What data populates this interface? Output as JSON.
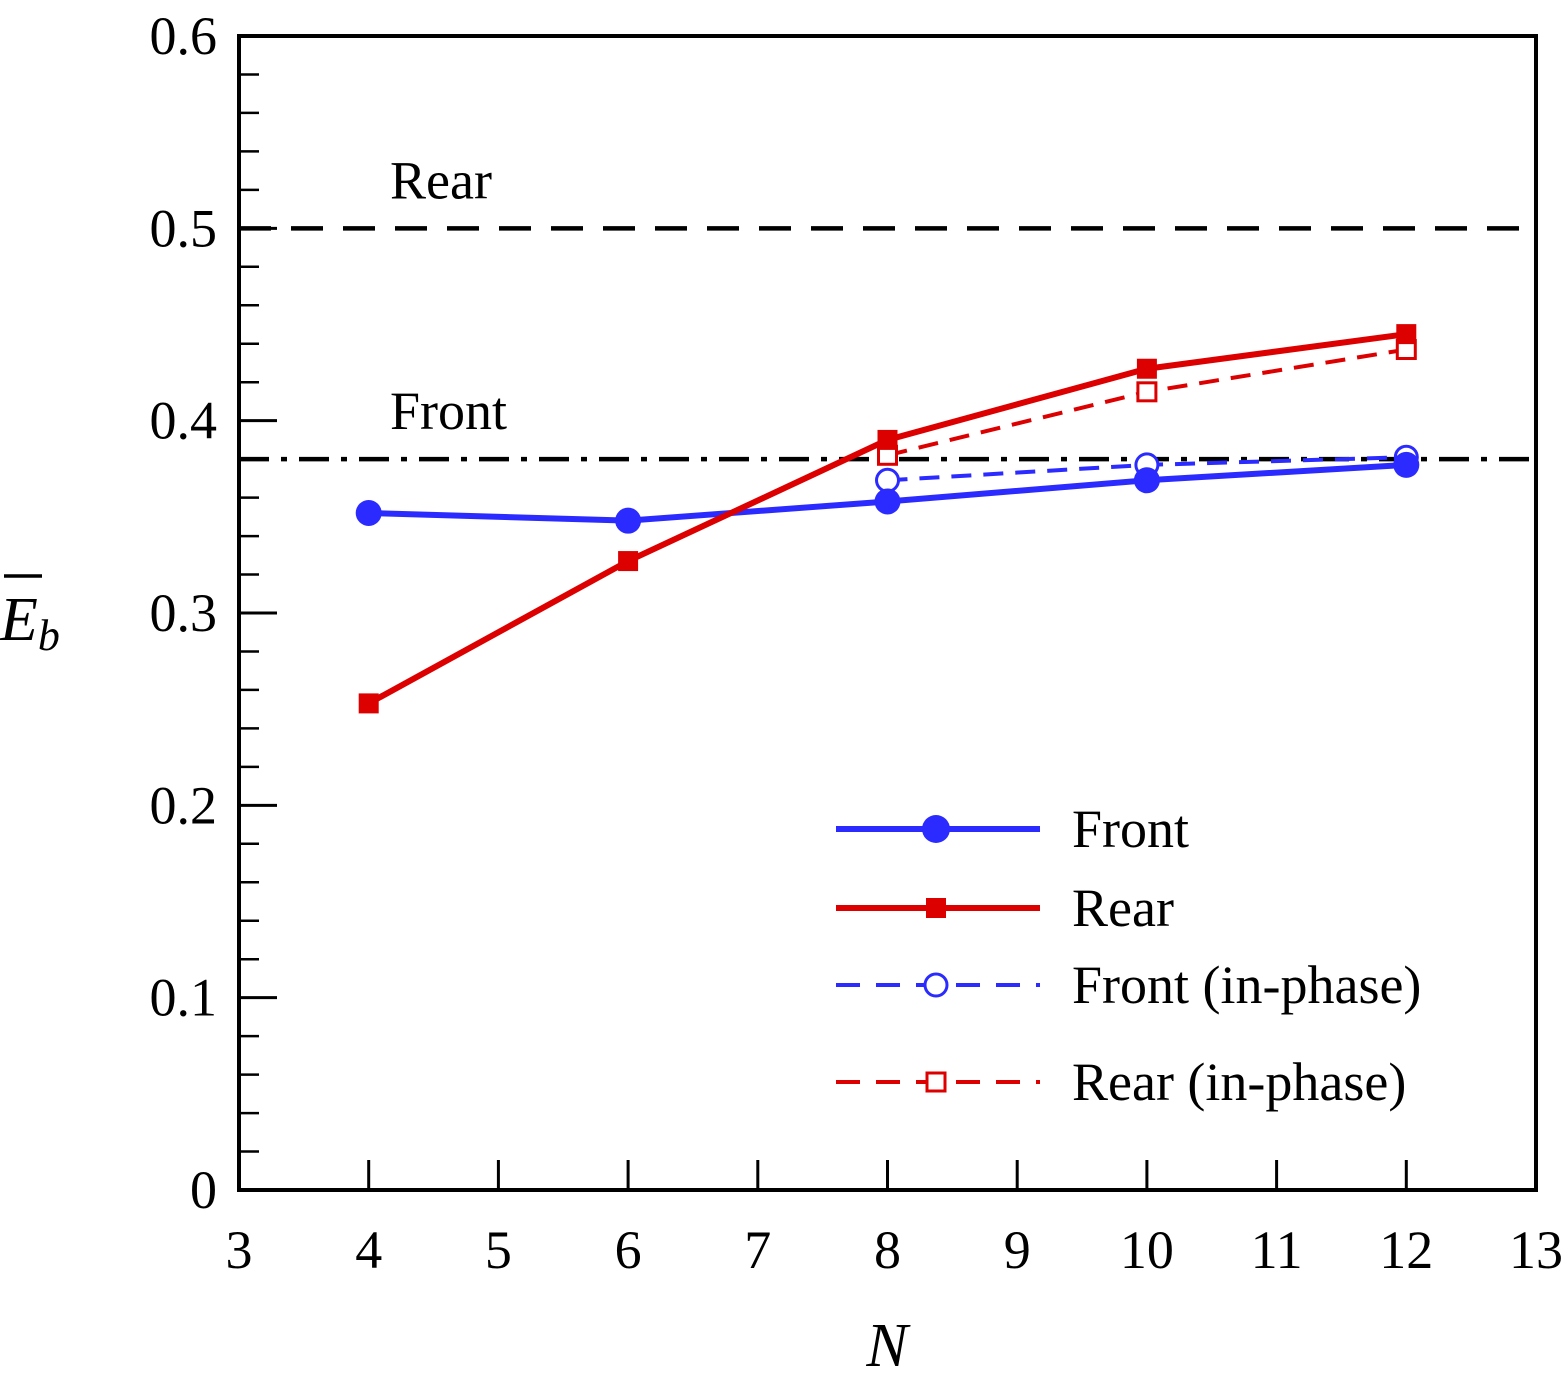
{
  "chart_data": {
    "type": "line",
    "xlabel": "N",
    "ylabel": {
      "symbol": "E",
      "subscript": "b"
    },
    "xlim": [
      3,
      13
    ],
    "ylim": [
      0,
      0.6
    ],
    "x_ticks": [
      "3",
      "4",
      "5",
      "6",
      "7",
      "8",
      "9",
      "10",
      "11",
      "12",
      "13"
    ],
    "y_ticks": [
      "0",
      "0.1",
      "0.2",
      "0.3",
      "0.4",
      "0.5",
      "0.6"
    ],
    "grid": false,
    "legend_position": "bottom-right",
    "series": [
      {
        "name": "Front",
        "color": "#2b2bff",
        "line": "solid",
        "marker": "filled-circle",
        "x": [
          4,
          6,
          8,
          10,
          12
        ],
        "y": [
          0.352,
          0.348,
          0.358,
          0.369,
          0.377
        ]
      },
      {
        "name": "Rear",
        "color": "#dd0000",
        "line": "solid",
        "marker": "filled-square",
        "x": [
          4,
          6,
          8,
          10,
          12
        ],
        "y": [
          0.253,
          0.327,
          0.39,
          0.427,
          0.445
        ]
      },
      {
        "name": "Front (in-phase)",
        "color": "#2b2bff",
        "line": "dashed",
        "marker": "open-circle",
        "x": [
          8,
          10,
          12
        ],
        "y": [
          0.369,
          0.377,
          0.381
        ]
      },
      {
        "name": "Rear (in-phase)",
        "color": "#dd0000",
        "line": "dashed",
        "marker": "open-square",
        "x": [
          8,
          10,
          12
        ],
        "y": [
          0.382,
          0.415,
          0.437
        ]
      }
    ],
    "reference_lines": [
      {
        "label": "Rear",
        "y": 0.5,
        "style": "dashed",
        "color": "#000000"
      },
      {
        "label": "Front",
        "y": 0.38,
        "style": "dash-dot",
        "color": "#000000"
      }
    ]
  }
}
